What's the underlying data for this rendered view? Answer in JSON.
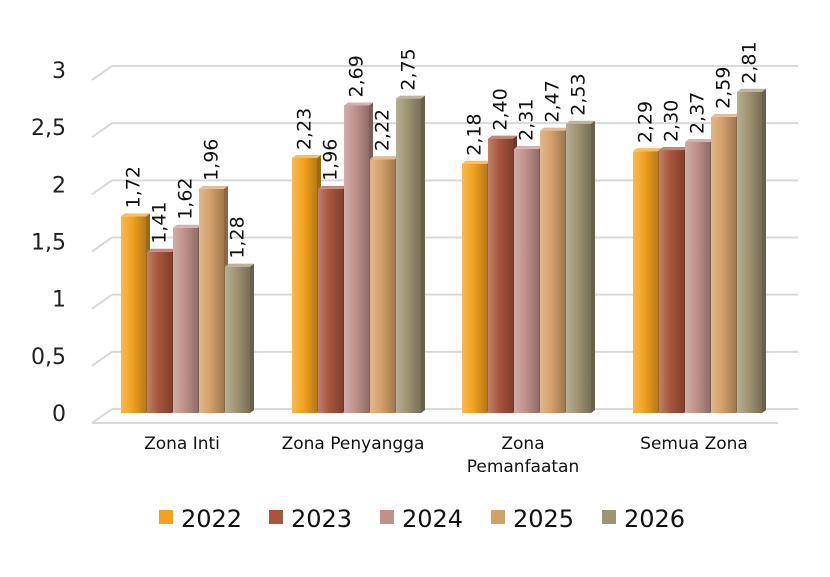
{
  "chart_data": {
    "type": "bar",
    "categories": [
      "Zona Inti",
      "Zona Penyangga",
      "Zona Pemanfaatan",
      "Semua Zona"
    ],
    "category_lines": [
      [
        "Zona Inti"
      ],
      [
        "Zona Penyangga"
      ],
      [
        "Zona",
        "Pemanfaatan"
      ],
      [
        "Semua Zona"
      ]
    ],
    "series": [
      {
        "name": "2022",
        "color": "#F2A21E",
        "values": [
          1.72,
          2.23,
          2.18,
          2.29
        ],
        "labels": [
          "1,72",
          "2,23",
          "2,18",
          "2,29"
        ]
      },
      {
        "name": "2023",
        "color": "#A9553C",
        "values": [
          1.41,
          1.96,
          2.4,
          2.3
        ],
        "labels": [
          "1,41",
          "1,96",
          "2,40",
          "2,30"
        ]
      },
      {
        "name": "2024",
        "color": "#C0918B",
        "values": [
          1.62,
          2.69,
          2.31,
          2.37
        ],
        "labels": [
          "1,62",
          "2,69",
          "2,31",
          "2,37"
        ]
      },
      {
        "name": "2025",
        "color": "#D4A06A",
        "values": [
          1.96,
          2.22,
          2.47,
          2.59
        ],
        "labels": [
          "1,96",
          "2,22",
          "2,47",
          "2,59"
        ]
      },
      {
        "name": "2026",
        "color": "#9E9473",
        "values": [
          1.28,
          2.75,
          2.53,
          2.81
        ],
        "labels": [
          "1,28",
          "2,75",
          "2,53",
          "2,81"
        ]
      }
    ],
    "yticks": [
      0,
      0.5,
      1,
      1.5,
      2,
      2.5,
      3
    ],
    "ytick_labels": [
      "0",
      "0,5",
      "1",
      "1,5",
      "2",
      "2,5",
      "3"
    ],
    "ylim": [
      0,
      3
    ],
    "grid": true,
    "legend_position": "bottom"
  }
}
